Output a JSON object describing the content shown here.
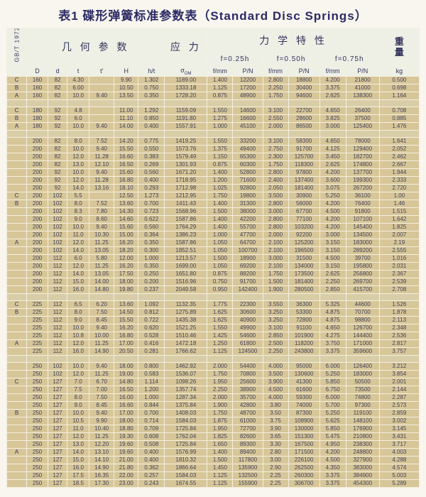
{
  "title": "表1 碟形弹簧标准参数表（Standard Disc Springs）",
  "standard": "GB/T 1972",
  "header": {
    "geometry": "几 何 参 数",
    "stress": "应 力",
    "mechanical": "力 学 特 性",
    "weight_line1": "重",
    "weight_line2": "量",
    "f25": "f=0.25h",
    "f50": "f=0.50h",
    "f75": "f=0.75h",
    "cols": {
      "D": "D",
      "d": "d",
      "t": "t",
      "t2": "t′",
      "H": "H",
      "ht": "h/t",
      "sigma": "σ",
      "sigma_sub": "OM",
      "fmm": "f/mm",
      "pn": "P/N",
      "kg": "kg"
    }
  },
  "colors": {
    "row_bg": "#d7c698",
    "header_bg": "#eef0e6",
    "title_color": "#2b2a66",
    "grid_line": "#f3efdf"
  },
  "rows": [
    {
      "c": "C",
      "v": [
        "160",
        "82",
        "4.30",
        "",
        "9.90",
        "1.302",
        "1189.00",
        "1.400",
        "12200",
        "2.800",
        "18800",
        "4.200",
        "21800",
        "0.500"
      ]
    },
    {
      "c": "B",
      "v": [
        "160",
        "82",
        "6.00",
        "",
        "10.50",
        "0.750",
        "1333.18",
        "1.125",
        "17200",
        "2.250",
        "30400",
        "3.375",
        "41000",
        "0.698"
      ]
    },
    {
      "c": "A",
      "v": [
        "160",
        "82",
        "10.0",
        "9.40",
        "13.50",
        "0.350",
        "1728.20",
        "0.875",
        "48900",
        "1.750",
        "94600",
        "2.625",
        "138300",
        "1.164"
      ]
    },
    {
      "gap": true
    },
    {
      "c": "C",
      "v": [
        "180",
        "92",
        "4.8",
        "",
        "11.00",
        "1.292",
        "1159.09",
        "1.550",
        "14600",
        "3.100",
        "22700",
        "4.650",
        "26400",
        "0.708"
      ]
    },
    {
      "c": "B",
      "v": [
        "180",
        "92",
        "6.0",
        "",
        "11.10",
        "0.850",
        "1191.80",
        "1.275",
        "16600",
        "2.550",
        "28600",
        "3.825",
        "37500",
        "0.885"
      ]
    },
    {
      "c": "A",
      "v": [
        "180",
        "92",
        "10.0",
        "9.40",
        "14.00",
        "0.400",
        "1557.91",
        "1.000",
        "45100",
        "2.000",
        "86500",
        "3.000",
        "125400",
        "1.476"
      ]
    },
    {
      "gap": true
    },
    {
      "c": "",
      "v": [
        "200",
        "82",
        "8.0",
        "7.52",
        "14.20",
        "0.775",
        "1419.25",
        "1.550",
        "33200",
        "3.100",
        "58300",
        "4.650",
        "78000",
        "1.641"
      ]
    },
    {
      "c": "",
      "v": [
        "200",
        "82",
        "10.0",
        "9.40",
        "15.50",
        "0.550",
        "1573.76",
        "1.375",
        "49400",
        "2.750",
        "91700",
        "4.125",
        "129400",
        "2.052"
      ]
    },
    {
      "c": "",
      "v": [
        "200",
        "82",
        "12.0",
        "11.28",
        "16.60",
        "0.383",
        "1579.49",
        "1.150",
        "65300",
        "2.300",
        "125700",
        "3.450",
        "182700",
        "2.462"
      ]
    },
    {
      "c": "",
      "v": [
        "200",
        "82",
        "13.0",
        "12.10",
        "16.50",
        "0.269",
        "1301.93",
        "0.875",
        "60300",
        "1.750",
        "118300",
        "2.625",
        "174800",
        "2.667"
      ]
    },
    {
      "c": "",
      "v": [
        "200",
        "92",
        "10.0",
        "9.40",
        "15.60",
        "0.560",
        "1671.20",
        "1.400",
        "52800",
        "2.800",
        "97800",
        "4.200",
        "137700",
        "1.944"
      ]
    },
    {
      "c": "",
      "v": [
        "200",
        "92",
        "12.0",
        "11.28",
        "16.80",
        "0.400",
        "1718.95",
        "1.200",
        "71600",
        "2.400",
        "137400",
        "3.600",
        "199300",
        "2.333"
      ]
    },
    {
      "c": "",
      "v": [
        "200",
        "92",
        "14.0",
        "13.16",
        "18.10",
        "0.293",
        "1712.98",
        "1.025",
        "92800",
        "2.050",
        "181400",
        "3.075",
        "267200",
        "2.720"
      ]
    },
    {
      "c": "C",
      "v": [
        "200",
        "102",
        "5.5",
        "",
        "12.50",
        "1.273",
        "1212.95",
        "1.750",
        "19800",
        "3.500",
        "30900",
        "5.250",
        "36100",
        "1.00"
      ]
    },
    {
      "c": "B",
      "v": [
        "200",
        "102",
        "8.0",
        "7.52",
        "13.60",
        "0.700",
        "1411.43",
        "1.400",
        "31300",
        "2.800",
        "56000",
        "4.200",
        "76400",
        "1.46"
      ]
    },
    {
      "c": "",
      "v": [
        "200",
        "102",
        "8.3",
        "7.80",
        "14.30",
        "0.723",
        "1568.96",
        "1.500",
        "38000",
        "3.000",
        "67700",
        "4.500",
        "91800",
        "1.515"
      ]
    },
    {
      "c": "",
      "v": [
        "200",
        "102",
        "9.0",
        "8.60",
        "14.60",
        "0.622",
        "1587.86",
        "1.400",
        "42200",
        "2.800",
        "77100",
        "4.200",
        "107100",
        "1.642"
      ]
    },
    {
      "c": "",
      "v": [
        "200",
        "102",
        "10.0",
        "9.40",
        "15.60",
        "0.560",
        "1764.29",
        "1.400",
        "55700",
        "2.800",
        "103200",
        "4.200",
        "145400",
        "1.825"
      ]
    },
    {
      "c": "",
      "v": [
        "200",
        "102",
        "11.0",
        "10.30",
        "15.00",
        "0.364",
        "1386.23",
        "1.000",
        "47700",
        "2.000",
        "92200",
        "3.000",
        "134500",
        "2.007"
      ]
    },
    {
      "c": "A",
      "v": [
        "200",
        "102",
        "12.0",
        "11.25",
        "16.20",
        "0.350",
        "1587.86",
        "1.050",
        "64700",
        "2.100",
        "125200",
        "3.150",
        "183000",
        "2.19"
      ]
    },
    {
      "c": "",
      "v": [
        "200",
        "102",
        "14.0",
        "13.05",
        "18.20",
        "0.300",
        "1852.51",
        "1.050",
        "100700",
        "2.100",
        "196500",
        "3.150",
        "289200",
        "2.555"
      ]
    },
    {
      "c": "",
      "v": [
        "200",
        "112",
        "6.0",
        "5.80",
        "12.00",
        "1.000",
        "1213.57",
        "1.500",
        "18900",
        "3.000",
        "31500",
        "4.500",
        "39700",
        "1.016"
      ]
    },
    {
      "c": "",
      "v": [
        "200",
        "112",
        "12.0",
        "11.25",
        "16.20",
        "0.350",
        "1699.00",
        "1.050",
        "69200",
        "2.100",
        "134000",
        "3.150",
        "195800",
        "2.031"
      ]
    },
    {
      "c": "",
      "v": [
        "200",
        "112",
        "14.0",
        "13.05",
        "17.50",
        "0.250",
        "1651.80",
        "0.875",
        "88200",
        "1.750",
        "173500",
        "2.625",
        "256800",
        "2.367"
      ]
    },
    {
      "c": "",
      "v": [
        "200",
        "112",
        "15.0",
        "14.00",
        "18.00",
        "0.200",
        "1516.96",
        "0.750",
        "91700",
        "1.500",
        "181400",
        "2.250",
        "269700",
        "2.539"
      ]
    },
    {
      "c": "",
      "v": [
        "200",
        "112",
        "16.0",
        "14.80",
        "19.80",
        "0.237",
        "2049.58",
        "0.950",
        "142400",
        "1.900",
        "280500",
        "2.850",
        "415700",
        "2.708"
      ]
    },
    {
      "gap": true
    },
    {
      "c": "C",
      "v": [
        "225",
        "112",
        "6.5",
        "6.20",
        "13.60",
        "1.092",
        "1132.35",
        "1.775",
        "22300",
        "3.550",
        "36300",
        "5.325",
        "44600",
        "1.526"
      ]
    },
    {
      "c": "B",
      "v": [
        "225",
        "112",
        "8.0",
        "7.50",
        "14.50",
        "0.812",
        "1275.89",
        "1.625",
        "30600",
        "3.250",
        "53300",
        "4.875",
        "70700",
        "1.878"
      ]
    },
    {
      "c": "",
      "v": [
        "225",
        "112",
        "9.0",
        "8.45",
        "15.50",
        "0.722",
        "1435.38",
        "1.625",
        "40900",
        "3.250",
        "72800",
        "4.875",
        "98800",
        "2.113"
      ]
    },
    {
      "c": "",
      "v": [
        "225",
        "112",
        "10.0",
        "9.40",
        "16.20",
        "0.620",
        "1521.25",
        "1.550",
        "49900",
        "3.100",
        "91100",
        "4.650",
        "126700",
        "2.348"
      ]
    },
    {
      "c": "",
      "v": [
        "225",
        "112",
        "10.8",
        "10.00",
        "16.80",
        "0.528",
        "1510.46",
        "1.425",
        "54600",
        "2.850",
        "101900",
        "4.275",
        "144400",
        "2.536"
      ]
    },
    {
      "c": "A",
      "v": [
        "225",
        "112",
        "12.0",
        "11.25",
        "17.00",
        "0.416",
        "1472.18",
        "1.250",
        "61800",
        "2.500",
        "118200",
        "3.750",
        "171000",
        "2.817"
      ]
    },
    {
      "c": "",
      "v": [
        "225",
        "112",
        "16.0",
        "14.90",
        "20.50",
        "0.281",
        "1766.62",
        "1.125",
        "124500",
        "2.250",
        "243800",
        "3.375",
        "359600",
        "3.757"
      ]
    },
    {
      "gap": true
    },
    {
      "c": "",
      "v": [
        "250",
        "102",
        "10.0",
        "9.40",
        "18.00",
        "0.800",
        "1462.92",
        "2.000",
        "54400",
        "4.000",
        "95000",
        "6.000",
        "126400",
        "3.212"
      ]
    },
    {
      "c": "",
      "v": [
        "250",
        "102",
        "12.0",
        "11.25",
        "19.00",
        "0.583",
        "1536.07",
        "1.750",
        "70800",
        "3.500",
        "130600",
        "5.250",
        "183000",
        "3.854"
      ]
    },
    {
      "c": "C",
      "v": [
        "250",
        "127",
        "7.0",
        "6.70",
        "14.80",
        "1.114",
        "1098.26",
        "1.950",
        "25600",
        "3.900",
        "41300",
        "5.850",
        "50500",
        "2.001"
      ]
    },
    {
      "c": "",
      "v": [
        "250",
        "127",
        "7.5",
        "7.00",
        "16.50",
        "1.200",
        "1357.74",
        "2.250",
        "38900",
        "4.500",
        "61600",
        "6.750",
        "73500",
        "2.144"
      ]
    },
    {
      "c": "",
      "v": [
        "250",
        "127",
        "8.0",
        "7.50",
        "16.00",
        "1.000",
        "1287.34",
        "2.000",
        "35700",
        "4.000",
        "59300",
        "6.000",
        "74800",
        "2.287"
      ]
    },
    {
      "c": "",
      "v": [
        "250",
        "127",
        "9.0",
        "8.45",
        "16.60",
        "0.844",
        "1375.84",
        "1.900",
        "42800",
        "3.80",
        "74000",
        "5.700",
        "97300",
        "2.573"
      ]
    },
    {
      "c": "B",
      "v": [
        "250",
        "127",
        "10.0",
        "9.40",
        "17.00",
        "0.700",
        "1408.03",
        "1.750",
        "48700",
        "3.50",
        "87300",
        "5.250",
        "119100",
        "2.859"
      ]
    },
    {
      "c": "",
      "v": [
        "250",
        "127",
        "10.5",
        "9.90",
        "18.00",
        "0.714",
        "1584.03",
        "1.875",
        "61000",
        "3.75",
        "108900",
        "5.625",
        "148100",
        "3.002"
      ]
    },
    {
      "c": "",
      "v": [
        "250",
        "127",
        "11.0",
        "10.40",
        "18.80",
        "0.709",
        "1725.84",
        "1.950",
        "72700",
        "3.90",
        "130000",
        "5.850",
        "176900",
        "3.145"
      ]
    },
    {
      "c": "",
      "v": [
        "250",
        "127",
        "12.0",
        "11.25",
        "19.30",
        "0.608",
        "1762.04",
        "1.825",
        "82600",
        "3.65",
        "151300",
        "5.475",
        "210800",
        "3.431"
      ]
    },
    {
      "c": "",
      "v": [
        "250",
        "127",
        "13.0",
        "12.20",
        "19.60",
        "0.508",
        "1725.84",
        "1.650",
        "89300",
        "3.30",
        "167500",
        "4.950",
        "238300",
        "3.717"
      ]
    },
    {
      "c": "A",
      "v": [
        "250",
        "127",
        "14.0",
        "13.10",
        "19.60",
        "0.400",
        "1576.99",
        "1.400",
        "89400",
        "2.80",
        "171500",
        "4.200",
        "248800",
        "4.003"
      ]
    },
    {
      "c": "",
      "v": [
        "250",
        "127",
        "15.0",
        "14.10",
        "21.00",
        "0.400",
        "1810.32",
        "1.500",
        "117800",
        "3.00",
        "226100",
        "4.500",
        "327900",
        "4.288"
      ]
    },
    {
      "c": "",
      "v": [
        "250",
        "127",
        "16.0",
        "14.90",
        "21.80",
        "0.362",
        "1866.64",
        "1.450",
        "135900",
        "2.90",
        "262500",
        "4.350",
        "383000",
        "4.574"
      ]
    },
    {
      "c": "",
      "v": [
        "250",
        "127",
        "17.5",
        "16.35",
        "22.00",
        "0.257",
        "1584.03",
        "1.125",
        "132500",
        "2.25",
        "260300",
        "3.375",
        "384900",
        "5.003"
      ]
    },
    {
      "c": "",
      "v": [
        "250",
        "127",
        "18.5",
        "17.30",
        "23.00",
        "0.243",
        "1674.55",
        "1.125",
        "155900",
        "2.25",
        "306700",
        "3.375",
        "454300",
        "5.289"
      ]
    }
  ]
}
